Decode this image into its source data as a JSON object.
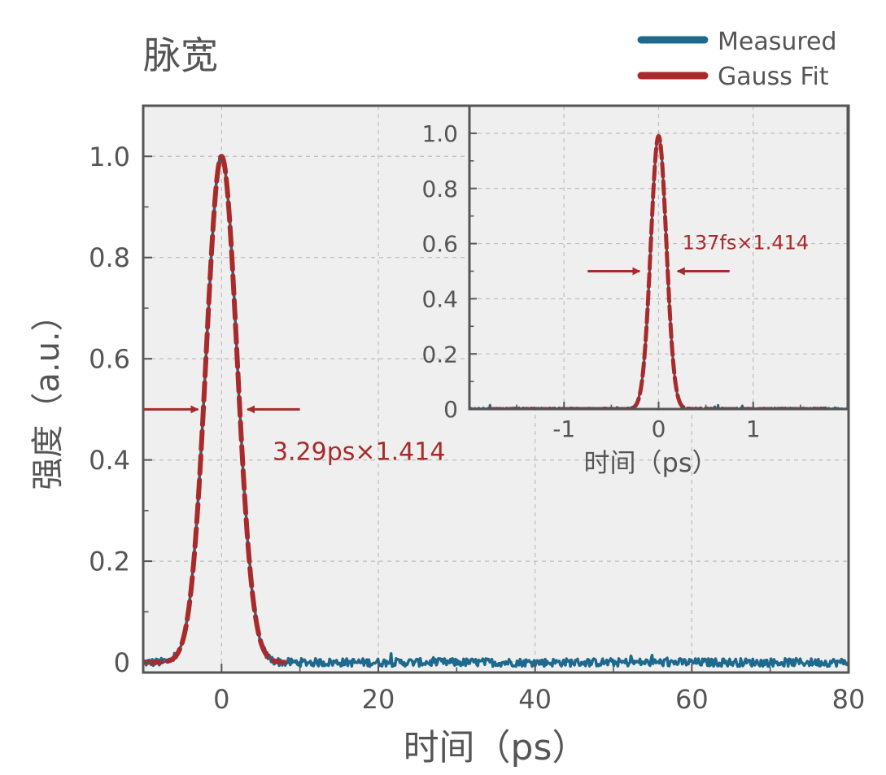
{
  "colors": {
    "measured": "#1e6a8e",
    "fit": "#a82a2a",
    "axis": "#555555",
    "plot_bg": "#efefef",
    "grid": "#bdbdbd"
  },
  "chart_data": [
    {
      "id": "main",
      "type": "line",
      "title": "脉宽",
      "xlabel": "时间（ps）",
      "ylabel": "强度（a.u.）",
      "xlim": [
        -10,
        80
      ],
      "ylim": [
        -0.02,
        1.1
      ],
      "x_ticks": [
        0,
        20,
        40,
        60,
        80
      ],
      "x_tick_labels": [
        "0",
        "20",
        "40",
        "60",
        "80"
      ],
      "y_ticks": [
        0,
        0.2,
        0.4,
        0.6,
        0.8,
        1.0
      ],
      "y_tick_labels": [
        "0",
        "0.2",
        "0.4",
        "0.6",
        "0.8",
        "1.0"
      ],
      "grid": true,
      "legend": {
        "position": "top-right",
        "entries": [
          "Measured",
          "Gauss Fit"
        ]
      },
      "series": [
        {
          "name": "Measured",
          "model": "gaussian_noisy",
          "center": 0.0,
          "fwhm": 4.65,
          "peak": 1.0,
          "baseline": 0.0,
          "noise": 0.008,
          "x_start": -10,
          "x_end": 80
        },
        {
          "name": "Gauss Fit",
          "model": "gaussian",
          "center": 0.0,
          "fwhm": 4.65,
          "peak": 1.0,
          "baseline": 0.0,
          "x_start": -10,
          "x_end": 8
        }
      ],
      "annotation": {
        "text": "3.29ps×1.414",
        "y_level": 0.5,
        "arrow_left_from": -10,
        "arrow_left_to": -3,
        "arrow_right_from": 10,
        "arrow_right_to": 3.3,
        "text_x": 6.5,
        "text_y": 0.4
      }
    },
    {
      "id": "inset",
      "type": "line",
      "xlabel": "时间（ps）",
      "xlim": [
        -2,
        2
      ],
      "ylim": [
        0,
        1.1
      ],
      "x_ticks": [
        -1,
        0,
        1
      ],
      "x_tick_labels": [
        "-1",
        "0",
        "1"
      ],
      "y_ticks": [
        0,
        0.2,
        0.4,
        0.6,
        0.8,
        1.0
      ],
      "y_tick_labels": [
        "0",
        "0.2",
        "0.4",
        "0.6",
        "0.8",
        "1.0"
      ],
      "grid": true,
      "series": [
        {
          "name": "Measured",
          "model": "gaussian_noisy",
          "center": 0.0,
          "fwhm": 0.194,
          "peak": 0.99,
          "baseline": 0.0,
          "noise": 0.005,
          "x_start": -2,
          "x_end": 2
        },
        {
          "name": "Gauss Fit",
          "model": "gaussian",
          "center": 0.0,
          "fwhm": 0.194,
          "peak": 0.99,
          "baseline": 0.0,
          "x_start": -1.8,
          "x_end": 1.8
        }
      ],
      "annotation": {
        "text": "137fs×1.414",
        "y_level": 0.5,
        "arrow_left_from": -0.75,
        "arrow_left_to": -0.2,
        "arrow_right_from": 0.75,
        "arrow_right_to": 0.2,
        "text_x": 0.25,
        "text_y": 0.58
      }
    }
  ]
}
